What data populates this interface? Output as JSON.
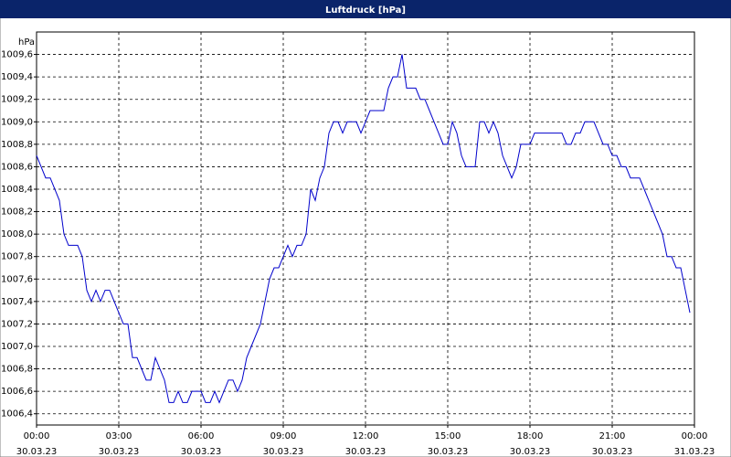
{
  "chart_data": {
    "type": "line",
    "title": "Luftdruck [hPa]",
    "y_label": "hPa",
    "color": "#0000cc",
    "grid": true,
    "xlim": [
      0,
      1440
    ],
    "xticks": [
      {
        "value": 0,
        "label": [
          "00:00",
          "30.03.23"
        ]
      },
      {
        "value": 180,
        "label": [
          "03:00",
          "30.03.23"
        ]
      },
      {
        "value": 360,
        "label": [
          "06:00",
          "30.03.23"
        ]
      },
      {
        "value": 540,
        "label": [
          "09:00",
          "30.03.23"
        ]
      },
      {
        "value": 720,
        "label": [
          "12:00",
          "30.03.23"
        ]
      },
      {
        "value": 900,
        "label": [
          "15:00",
          "30.03.23"
        ]
      },
      {
        "value": 1080,
        "label": [
          "18:00",
          "30.03.23"
        ]
      },
      {
        "value": 1260,
        "label": [
          "21:00",
          "30.03.23"
        ]
      },
      {
        "value": 1440,
        "label": [
          "00:00",
          "31.03.23"
        ]
      }
    ],
    "ylim": [
      1006.3,
      1009.8
    ],
    "yticks": [
      {
        "value": 1006.4,
        "label": "1006,4"
      },
      {
        "value": 1006.6,
        "label": "1006,6"
      },
      {
        "value": 1006.8,
        "label": "1006,8"
      },
      {
        "value": 1007.0,
        "label": "1007,0"
      },
      {
        "value": 1007.2,
        "label": "1007,2"
      },
      {
        "value": 1007.4,
        "label": "1007,4"
      },
      {
        "value": 1007.6,
        "label": "1007,6"
      },
      {
        "value": 1007.8,
        "label": "1007,8"
      },
      {
        "value": 1008.0,
        "label": "1008,0"
      },
      {
        "value": 1008.2,
        "label": "1008,2"
      },
      {
        "value": 1008.4,
        "label": "1008,4"
      },
      {
        "value": 1008.6,
        "label": "1008,6"
      },
      {
        "value": 1008.8,
        "label": "1008,8"
      },
      {
        "value": 1009.0,
        "label": "1009,0"
      },
      {
        "value": 1009.2,
        "label": "1009,2"
      },
      {
        "value": 1009.4,
        "label": "1009,4"
      },
      {
        "value": 1009.6,
        "label": "1009,6"
      }
    ],
    "x": [
      0,
      20,
      30,
      50,
      60,
      70,
      90,
      100,
      110,
      120,
      130,
      140,
      150,
      160,
      180,
      190,
      200,
      210,
      220,
      240,
      250,
      260,
      280,
      290,
      300,
      310,
      320,
      330,
      340,
      360,
      370,
      380,
      390,
      400,
      420,
      430,
      440,
      450,
      460,
      470,
      490,
      500,
      510,
      520,
      530,
      550,
      560,
      570,
      580,
      590,
      600,
      610,
      620,
      630,
      640,
      650,
      660,
      670,
      680,
      700,
      710,
      720,
      730,
      750,
      760,
      770,
      780,
      790,
      800,
      810,
      830,
      840,
      850,
      860,
      880,
      890,
      900,
      910,
      920,
      930,
      940,
      960,
      970,
      980,
      990,
      1000,
      1010,
      1020,
      1030,
      1040,
      1050,
      1060,
      1080,
      1090,
      1150,
      1160,
      1170,
      1180,
      1190,
      1200,
      1220,
      1230,
      1240,
      1250,
      1260,
      1270,
      1280,
      1290,
      1300,
      1320,
      1330,
      1340,
      1350,
      1360,
      1370,
      1380,
      1390,
      1400,
      1410,
      1420,
      1430
    ],
    "values": [
      1008.7,
      1008.5,
      1008.5,
      1008.3,
      1008.0,
      1007.9,
      1007.9,
      1007.8,
      1007.5,
      1007.4,
      1007.5,
      1007.4,
      1007.5,
      1007.5,
      1007.3,
      1007.2,
      1007.2,
      1006.9,
      1006.9,
      1006.7,
      1006.7,
      1006.9,
      1006.7,
      1006.5,
      1006.5,
      1006.6,
      1006.5,
      1006.5,
      1006.6,
      1006.6,
      1006.5,
      1006.5,
      1006.6,
      1006.5,
      1006.7,
      1006.7,
      1006.6,
      1006.7,
      1006.9,
      1007.0,
      1007.2,
      1007.4,
      1007.6,
      1007.7,
      1007.7,
      1007.9,
      1007.8,
      1007.9,
      1007.9,
      1008.0,
      1008.4,
      1008.3,
      1008.5,
      1008.6,
      1008.9,
      1009.0,
      1009.0,
      1008.9,
      1009.0,
      1009.0,
      1008.9,
      1009.0,
      1009.1,
      1009.1,
      1009.1,
      1009.3,
      1009.4,
      1009.4,
      1009.6,
      1009.3,
      1009.3,
      1009.2,
      1009.2,
      1009.1,
      1008.9,
      1008.8,
      1008.8,
      1009.0,
      1008.9,
      1008.7,
      1008.6,
      1008.6,
      1009.0,
      1009.0,
      1008.9,
      1009.0,
      1008.9,
      1008.7,
      1008.6,
      1008.5,
      1008.6,
      1008.8,
      1008.8,
      1008.9,
      1008.9,
      1008.8,
      1008.8,
      1008.9,
      1008.9,
      1009.0,
      1009.0,
      1008.9,
      1008.8,
      1008.8,
      1008.7,
      1008.7,
      1008.6,
      1008.6,
      1008.5,
      1008.5,
      1008.4,
      1008.3,
      1008.2,
      1008.1,
      1008.0,
      1007.8,
      1007.8,
      1007.7,
      1007.7,
      1007.5,
      1007.3
    ]
  }
}
